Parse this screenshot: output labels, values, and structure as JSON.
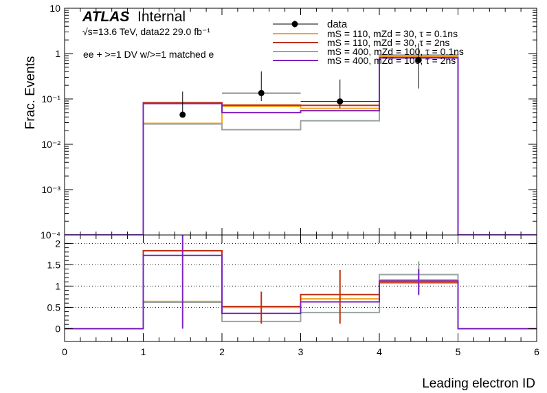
{
  "chart_data": [
    {
      "type": "line",
      "panel": "top",
      "ylabel": "Frac. Events",
      "yscale": "log",
      "ylim": [
        0.0001,
        10
      ],
      "xlim": [
        0,
        6
      ],
      "yticks": [
        {
          "v": 10,
          "label": "10"
        },
        {
          "v": 1,
          "label": "1"
        },
        {
          "v": 0.1,
          "label": "10⁻¹"
        },
        {
          "v": 0.01,
          "label": "10⁻²"
        },
        {
          "v": 0.001,
          "label": "10⁻³"
        },
        {
          "v": 0.0001,
          "label": "10⁻⁴"
        }
      ],
      "annotations": {
        "atlas": "ATLAS",
        "internal": "Internal",
        "energy": "√s=13.6 TeV, data22 29.0 fb⁻¹",
        "selection": "ee + >=1 DV w/>=1 matched e"
      },
      "bin_edges": [
        0,
        1,
        2,
        3,
        4,
        5,
        6
      ],
      "series": [
        {
          "name": "mS = 110, mZd = 30, τ = 0.1ns",
          "color": "#f5a623",
          "values": [
            0.0001,
            0.029,
            0.068,
            0.062,
            0.87,
            0.0001
          ]
        },
        {
          "name": "mS = 110, mZd = 30, τ = 2ns",
          "color": "#c0300f",
          "values": [
            0.0001,
            0.083,
            0.073,
            0.072,
            0.82,
            0.0001
          ]
        },
        {
          "name": "mS = 400, mZd = 100, τ = 0.1ns",
          "color": "#9aa5a2",
          "values": [
            0.0001,
            0.028,
            0.021,
            0.033,
            0.93,
            0.0001
          ]
        },
        {
          "name": "mS = 400, mZd = 100, τ = 2ns",
          "color": "#7b22c4",
          "values": [
            0.0001,
            0.079,
            0.05,
            0.055,
            0.8,
            0.0001
          ]
        }
      ],
      "data": {
        "name": "data",
        "x": [
          1.5,
          2.5,
          3.5,
          4.5
        ],
        "y": [
          0.045,
          0.135,
          0.088,
          0.72
        ],
        "yerr_up": [
          0.1,
          0.27,
          0.18,
          0.95
        ],
        "yerr_down": [
          0.0001,
          0.045,
          0.026,
          0.55
        ],
        "xerr": [
          0.0,
          0.5,
          0.5,
          0.0
        ]
      }
    },
    {
      "type": "line",
      "panel": "ratio",
      "xlabel": "Leading electron ID",
      "ylim": [
        -0.3,
        2.2
      ],
      "xlim": [
        0,
        6
      ],
      "yticks": [
        {
          "v": 0,
          "label": "0"
        },
        {
          "v": 0.5,
          "label": "0.5"
        },
        {
          "v": 1,
          "label": "1"
        },
        {
          "v": 1.5,
          "label": "1.5"
        },
        {
          "v": 2,
          "label": "2"
        }
      ],
      "xticks": [
        {
          "v": 0,
          "label": "0"
        },
        {
          "v": 1,
          "label": "1"
        },
        {
          "v": 2,
          "label": "2"
        },
        {
          "v": 3,
          "label": "3"
        },
        {
          "v": 4,
          "label": "4"
        },
        {
          "v": 5,
          "label": "5"
        },
        {
          "v": 6,
          "label": "6"
        }
      ],
      "gridlines": [
        0.5,
        1,
        1.5,
        2
      ],
      "bin_edges": [
        0,
        1,
        2,
        3,
        4,
        5,
        6
      ],
      "series": [
        {
          "name": "mS = 110, mZd = 30, τ = 0.1ns",
          "color": "#f5a623",
          "values": [
            0,
            0.64,
            0.5,
            0.7,
            1.15,
            0
          ]
        },
        {
          "name": "mS = 110, mZd = 30, τ = 2ns",
          "color": "#c0300f",
          "values": [
            0,
            1.83,
            0.52,
            0.8,
            1.08,
            0
          ]
        },
        {
          "name": "mS = 400, mZd = 100, τ = 0.1ns",
          "color": "#9aa5a2",
          "values": [
            0,
            0.62,
            0.17,
            0.38,
            1.27,
            0
          ]
        },
        {
          "name": "mS = 400, mZd = 100, τ = 2ns",
          "color": "#7b22c4",
          "values": [
            0,
            1.72,
            0.36,
            0.63,
            1.12,
            0
          ]
        }
      ],
      "errors": [
        {
          "x": 1.5,
          "low": 0.0,
          "high": 2.2,
          "color": "#7b22c4"
        },
        {
          "x": 2.5,
          "low": 0.12,
          "high": 0.87,
          "color": "#c0300f"
        },
        {
          "x": 3.5,
          "low": 0.12,
          "high": 1.38,
          "color": "#c0300f"
        },
        {
          "x": 4.5,
          "low": 0.78,
          "high": 1.58,
          "color": "#9aa5a2"
        },
        {
          "x": 4.5,
          "low": 0.8,
          "high": 1.4,
          "color": "#7b22c4"
        }
      ]
    }
  ]
}
